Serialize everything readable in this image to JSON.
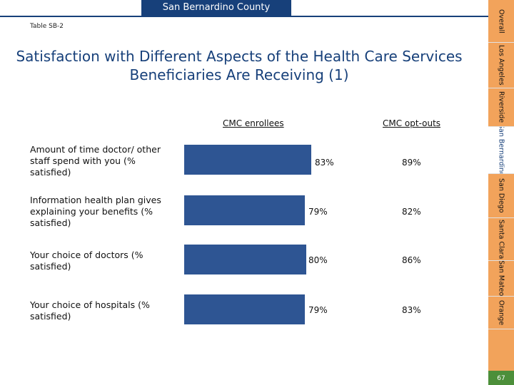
{
  "header": {
    "county": "San Bernardino County",
    "table_id": "Table SB-2"
  },
  "title": "Satisfaction with Different Aspects of the Health Care Services Beneficiaries Are Receiving (1)",
  "columns": {
    "enrollees": "CMC enrollees",
    "optouts": "CMC opt-outs"
  },
  "rows": [
    {
      "label": "Amount of time doctor/ other staff spend with you (% satisfied)",
      "enrollees_label": "83%",
      "optouts_label": "89%"
    },
    {
      "label": "Information health plan gives explaining your benefits (% satisfied)",
      "enrollees_label": "79%",
      "optouts_label": "82%"
    },
    {
      "label": "Your choice of doctors (% satisfied)",
      "enrollees_label": "80%",
      "optouts_label": "86%"
    },
    {
      "label": "Your choice of hospitals (% satisfied)",
      "enrollees_label": "79%",
      "optouts_label": "83%"
    }
  ],
  "sidebar": {
    "tabs": [
      {
        "label": "Overall",
        "active": false
      },
      {
        "label": "Los Angeles",
        "active": false
      },
      {
        "label": "Riverside",
        "active": false
      },
      {
        "label": "San Bernardino",
        "active": true
      },
      {
        "label": "San Diego",
        "active": false
      },
      {
        "label": "Santa Clara",
        "active": false
      },
      {
        "label": "San Mateo",
        "active": false
      },
      {
        "label": "Orange",
        "active": false
      }
    ],
    "page_number": "67"
  },
  "colors": {
    "bar": "#2e5593",
    "navy": "#17407a",
    "tab": "#f2a35b",
    "page_badge": "#4c8f3a"
  },
  "chart_data": {
    "type": "bar",
    "orientation": "horizontal",
    "title": "Satisfaction with Different Aspects of the Health Care Services Beneficiaries Are Receiving (1)",
    "categories": [
      "Amount of time doctor/ other staff spend with you (% satisfied)",
      "Information health plan gives explaining your benefits (% satisfied)",
      "Your choice of doctors (% satisfied)",
      "Your choice of hospitals (% satisfied)"
    ],
    "series": [
      {
        "name": "CMC enrollees",
        "values": [
          83,
          79,
          80,
          79
        ]
      },
      {
        "name": "CMC opt-outs",
        "values": [
          89,
          82,
          86,
          83
        ]
      }
    ],
    "xlim": [
      0,
      100
    ],
    "unit": "%"
  }
}
